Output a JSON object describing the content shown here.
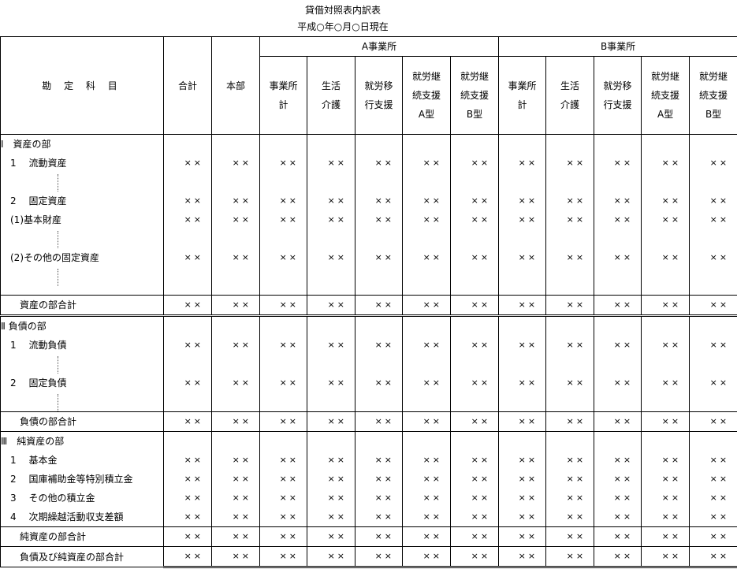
{
  "title": "貸借対照表内訳表",
  "date": "平成○年○月○日現在",
  "header": {
    "account": "勘 定 科 目",
    "total": "合計",
    "hq": "本部",
    "office_a": "A事業所",
    "office_b": "B事業所",
    "sub": [
      "事業所\n計",
      "生活\n介護",
      "就労移\n行支援",
      "就労継\n続支援\nA型",
      "就労継\n続支援\nB型"
    ]
  },
  "rows": [
    {
      "label": "Ⅰ　資産の部",
      "h": 24
    },
    {
      "label": "　1　 流動資産",
      "values": [
        "××",
        "××",
        "××",
        "××",
        "××",
        "××",
        "××",
        "××",
        "××",
        "××",
        "××",
        "××",
        "××"
      ]
    },
    {
      "label": "",
      "dotted": true
    },
    {
      "label": "　2　 固定資産",
      "values": [
        "××",
        "××",
        "××",
        "××",
        "××",
        "××",
        "××",
        "××",
        "××",
        "××",
        "××",
        "××",
        "××"
      ]
    },
    {
      "label": "　(1)基本財産",
      "values": [
        "××",
        "××",
        "××",
        "××",
        "××",
        "××",
        "××",
        "××",
        "××",
        "××",
        "××",
        "××",
        "××"
      ]
    },
    {
      "label": "",
      "dotted": true
    },
    {
      "label": "　(2)その他の固定資産",
      "values": [
        "××",
        "××",
        "××",
        "××",
        "××",
        "××",
        "××",
        "××",
        "××",
        "××",
        "××",
        "××",
        "××"
      ]
    },
    {
      "label": "",
      "dotted": true,
      "h": 35,
      "end": "end"
    },
    {
      "label": "　　資産の部合計",
      "values": [
        "××",
        "××",
        "××",
        "××",
        "××",
        "××",
        "××",
        "××",
        "××",
        "××",
        "××",
        "××",
        "××"
      ],
      "end": "dbl"
    },
    {
      "label": "Ⅱ 負債の部",
      "h": 22
    },
    {
      "label": "　1　 流動負債",
      "values": [
        "××",
        "××",
        "××",
        "××",
        "××",
        "××",
        "××",
        "××",
        "××",
        "××",
        "××",
        "××",
        "××"
      ]
    },
    {
      "label": "",
      "dotted": true
    },
    {
      "label": "　2　 固定負債",
      "values": [
        "××",
        "××",
        "××",
        "××",
        "××",
        "××",
        "××",
        "××",
        "××",
        "××",
        "××",
        "××",
        "××"
      ]
    },
    {
      "label": "",
      "dotted": true,
      "end": "end"
    },
    {
      "label": "　　負債の部合計",
      "values": [
        "××",
        "××",
        "××",
        "××",
        "××",
        "××",
        "××",
        "××",
        "××",
        "××",
        "××",
        "××",
        "××"
      ],
      "end": "end"
    },
    {
      "label": "Ⅲ　純資産の部"
    },
    {
      "label": "　1　 基本金",
      "values": [
        "××",
        "××",
        "××",
        "××",
        "××",
        "××",
        "××",
        "××",
        "××",
        "××",
        "××",
        "××",
        "××"
      ]
    },
    {
      "label": "　2　 国庫補助金等特別積立金",
      "values": [
        "××",
        "××",
        "××",
        "××",
        "××",
        "××",
        "××",
        "××",
        "××",
        "××",
        "××",
        "××",
        "××"
      ]
    },
    {
      "label": "　3　 その他の積立金",
      "values": [
        "××",
        "××",
        "××",
        "××",
        "××",
        "××",
        "××",
        "××",
        "××",
        "××",
        "××",
        "××",
        "××"
      ]
    },
    {
      "label": "　4　 次期繰越活動収支差額",
      "values": [
        "××",
        "××",
        "××",
        "××",
        "××",
        "××",
        "××",
        "××",
        "××",
        "××",
        "××",
        "××",
        "××"
      ],
      "end": "end"
    },
    {
      "label": "　　純資産の部合計",
      "values": [
        "××",
        "××",
        "××",
        "××",
        "××",
        "××",
        "××",
        "××",
        "××",
        "××",
        "××",
        "××",
        "××"
      ],
      "end": "end"
    },
    {
      "label": "　　負債及び純資産の部合計",
      "values": [
        "××",
        "××",
        "××",
        "××",
        "××",
        "××",
        "××",
        "××",
        "××",
        "××",
        "××",
        "××",
        "××"
      ],
      "end": "end last"
    }
  ]
}
